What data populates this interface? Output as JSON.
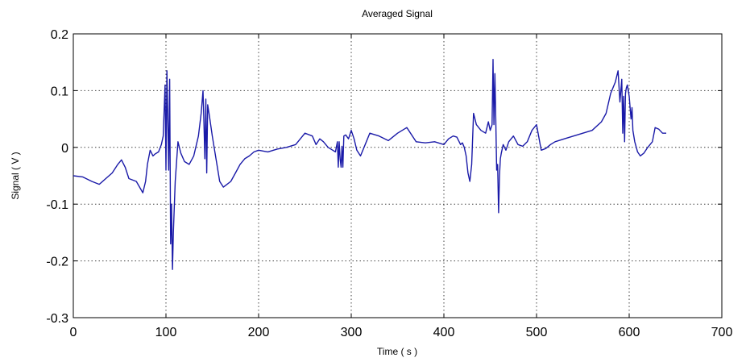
{
  "chart_data": {
    "type": "line",
    "title": "Averaged Signal",
    "xlabel": "Time ( s )",
    "ylabel": "Signal ( V )",
    "xlim": [
      0,
      700
    ],
    "ylim": [
      -0.3,
      0.2
    ],
    "xticks": [
      0,
      100,
      200,
      300,
      400,
      500,
      600,
      700
    ],
    "xtick_labels": [
      "0",
      "100",
      "200",
      "300",
      "400",
      "500",
      "600",
      "700"
    ],
    "yticks": [
      -0.3,
      -0.2,
      -0.1,
      0,
      0.1,
      0.2
    ],
    "ytick_labels": [
      "-0.3",
      "-0.2",
      "-0.1",
      "0",
      "0.1",
      "0.2"
    ],
    "grid": true,
    "line_color": "#1a1aa8",
    "series": [
      {
        "name": "",
        "x": [
          0,
          10,
          20,
          28,
          35,
          42,
          48,
          52,
          56,
          60,
          68,
          75,
          78,
          80,
          83,
          86,
          88,
          92,
          95,
          97,
          99,
          100,
          101,
          102,
          103,
          104,
          105,
          106,
          107,
          108,
          110,
          113,
          116,
          120,
          125,
          130,
          135,
          138,
          140,
          141,
          142,
          143,
          144,
          145,
          147,
          150,
          154,
          158,
          162,
          166,
          170,
          175,
          180,
          185,
          190,
          195,
          200,
          210,
          220,
          230,
          240,
          245,
          250,
          258,
          262,
          266,
          270,
          275,
          280,
          283,
          285,
          286,
          287,
          288,
          289,
          290,
          291,
          292,
          294,
          297,
          300,
          303,
          306,
          310,
          315,
          320,
          330,
          340,
          350,
          360,
          370,
          380,
          390,
          400,
          405,
          410,
          414,
          418,
          420,
          422,
          424,
          426,
          428,
          430,
          432,
          435,
          440,
          445,
          448,
          450,
          452,
          453,
          454,
          455,
          456,
          457,
          458,
          459,
          460,
          461,
          462,
          464,
          467,
          470,
          475,
          480,
          485,
          490,
          495,
          500,
          505,
          510,
          515,
          520,
          530,
          540,
          550,
          560,
          570,
          575,
          580,
          585,
          588,
          590,
          592,
          593,
          594,
          595,
          596,
          597,
          598,
          600,
          602,
          603,
          604,
          606,
          609,
          612,
          616,
          620,
          625,
          628,
          632,
          636,
          640
        ],
        "y": [
          -0.05,
          -0.052,
          -0.06,
          -0.065,
          -0.055,
          -0.045,
          -0.03,
          -0.022,
          -0.035,
          -0.055,
          -0.06,
          -0.08,
          -0.06,
          -0.03,
          -0.005,
          -0.015,
          -0.012,
          -0.008,
          0.005,
          0.02,
          0.11,
          -0.04,
          0.135,
          0.05,
          -0.04,
          0.12,
          -0.17,
          -0.1,
          -0.215,
          -0.15,
          -0.06,
          0.01,
          -0.01,
          -0.025,
          -0.03,
          -0.015,
          0.02,
          0.06,
          0.1,
          0.04,
          -0.02,
          0.085,
          -0.045,
          0.075,
          0.055,
          0.02,
          -0.02,
          -0.06,
          -0.07,
          -0.065,
          -0.06,
          -0.045,
          -0.03,
          -0.02,
          -0.015,
          -0.008,
          -0.005,
          -0.008,
          -0.003,
          0,
          0.005,
          0.015,
          0.025,
          0.02,
          0.005,
          0.015,
          0.01,
          0,
          -0.005,
          -0.008,
          0.01,
          -0.035,
          0.01,
          -0.02,
          -0.035,
          0.002,
          -0.035,
          0.02,
          0.022,
          0.015,
          0.03,
          0.015,
          -0.005,
          -0.015,
          0.005,
          0.025,
          0.02,
          0.012,
          0.025,
          0.035,
          0.01,
          0.008,
          0.01,
          0.005,
          0.015,
          0.02,
          0.018,
          0.005,
          0.008,
          0,
          -0.015,
          -0.045,
          -0.06,
          -0.03,
          0.06,
          0.04,
          0.03,
          0.025,
          0.045,
          0.03,
          0.04,
          0.155,
          0.04,
          0.13,
          0.05,
          -0.04,
          -0.03,
          -0.115,
          -0.05,
          -0.02,
          -0.01,
          0.005,
          -0.005,
          0.01,
          0.02,
          0.005,
          0.002,
          0.01,
          0.03,
          0.04,
          -0.005,
          -0.002,
          0.005,
          0.01,
          0.015,
          0.02,
          0.025,
          0.03,
          0.045,
          0.06,
          0.095,
          0.115,
          0.135,
          0.08,
          0.12,
          0.025,
          0.09,
          0.01,
          0.095,
          0.105,
          0.11,
          0.09,
          0.05,
          0.07,
          0.03,
          0.01,
          -0.008,
          -0.015,
          -0.01,
          0,
          0.01,
          0.035,
          0.032,
          0.025,
          0.025
        ]
      }
    ]
  }
}
